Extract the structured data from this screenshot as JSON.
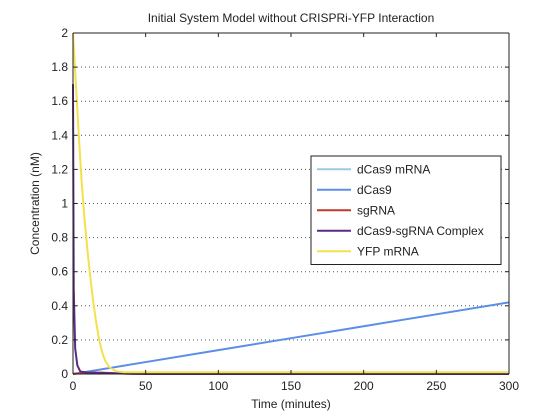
{
  "chart_data": {
    "type": "line",
    "title": "Initial System Model without CRISPRi-YFP Interaction",
    "xlabel": "Time (minutes)",
    "ylabel": "Concentration (nM)",
    "xlim": [
      0,
      300
    ],
    "ylim": [
      0,
      2
    ],
    "xticks": [
      0,
      50,
      100,
      150,
      200,
      250,
      300
    ],
    "yticks": [
      0,
      0.2,
      0.4,
      0.6,
      0.8,
      1,
      1.2,
      1.4,
      1.6,
      1.8,
      2
    ],
    "xtick_labels": [
      "0",
      "50",
      "100",
      "150",
      "200",
      "250",
      "300"
    ],
    "ytick_labels": [
      "0",
      "0.2",
      "0.4",
      "0.6",
      "0.8",
      "1",
      "1.2",
      "1.4",
      "1.6",
      "1.8",
      "2"
    ],
    "grid": "y-dotted",
    "legend_position": "right-center",
    "series": [
      {
        "name": "dCas9 mRNA",
        "color": "#9ecae1",
        "x": [
          0,
          300
        ],
        "y": [
          0.004,
          0.004
        ]
      },
      {
        "name": "dCas9",
        "color": "#5b8ee6",
        "x": [
          0,
          50,
          100,
          150,
          200,
          250,
          300
        ],
        "y": [
          0,
          0.07,
          0.14,
          0.21,
          0.28,
          0.35,
          0.42
        ]
      },
      {
        "name": "sgRNA",
        "color": "#c0392b",
        "x": [
          0,
          10,
          20,
          30,
          40,
          300
        ],
        "y": [
          0,
          0.008,
          0.008,
          0.004,
          0.001,
          0
        ]
      },
      {
        "name": "dCas9-sgRNA Complex",
        "color": "#5b2b82",
        "x": [
          0,
          0.5,
          1.5,
          3,
          5,
          10,
          20,
          30,
          40,
          50,
          300
        ],
        "y": [
          1.7,
          0.5,
          0.15,
          0.05,
          0.015,
          0.008,
          0.006,
          0.004,
          0.002,
          0,
          0
        ]
      },
      {
        "name": "YFP mRNA",
        "color": "#f4e04d",
        "x": [
          0,
          2,
          4,
          6,
          8,
          10,
          12,
          14,
          16,
          18,
          20,
          22,
          25,
          30,
          35,
          40,
          50,
          300
        ],
        "y": [
          2,
          1.7,
          1.4,
          1.12,
          0.9,
          0.72,
          0.56,
          0.42,
          0.3,
          0.2,
          0.13,
          0.08,
          0.04,
          0.015,
          0.01,
          0.01,
          0.01,
          0.01
        ]
      }
    ]
  }
}
